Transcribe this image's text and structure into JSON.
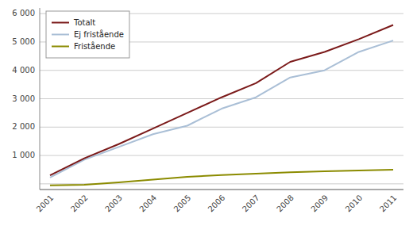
{
  "chart_data": {
    "type": "line",
    "x": [
      2001,
      2002,
      2003,
      2004,
      2005,
      2006,
      2007,
      2008,
      2009,
      2010,
      2011
    ],
    "series": [
      {
        "name": "Totalt",
        "color": "#7B1A1A",
        "values": [
          300,
          900,
          1400,
          1950,
          2500,
          3050,
          3550,
          4300,
          4650,
          5100,
          5600
        ]
      },
      {
        "name": "Ej fristående",
        "color": "#AABFD6",
        "values": [
          220,
          850,
          1300,
          1750,
          2050,
          2650,
          3050,
          3750,
          4000,
          4650,
          5050
        ]
      },
      {
        "name": "Fristående",
        "color": "#8B8B00",
        "values": [
          -50,
          -30,
          50,
          150,
          250,
          310,
          360,
          410,
          440,
          470,
          500
        ]
      }
    ],
    "xlim": [
      2000.7,
      2011.3
    ],
    "xticks": [
      2001,
      2002,
      2003,
      2004,
      2005,
      2006,
      2007,
      2008,
      2009,
      2010,
      2011
    ],
    "ylim": [
      -200,
      6200
    ],
    "yticks": [
      {
        "value": 0,
        "label": null
      },
      {
        "value": 1000,
        "label": "1 000"
      },
      {
        "value": 2000,
        "label": "2 000"
      },
      {
        "value": 3000,
        "label": "3 000"
      },
      {
        "value": 4000,
        "label": "4 000"
      },
      {
        "value": 5000,
        "label": "5 000"
      },
      {
        "value": 6000,
        "label": "6 000"
      }
    ],
    "grid": true,
    "legend": "upper left"
  }
}
